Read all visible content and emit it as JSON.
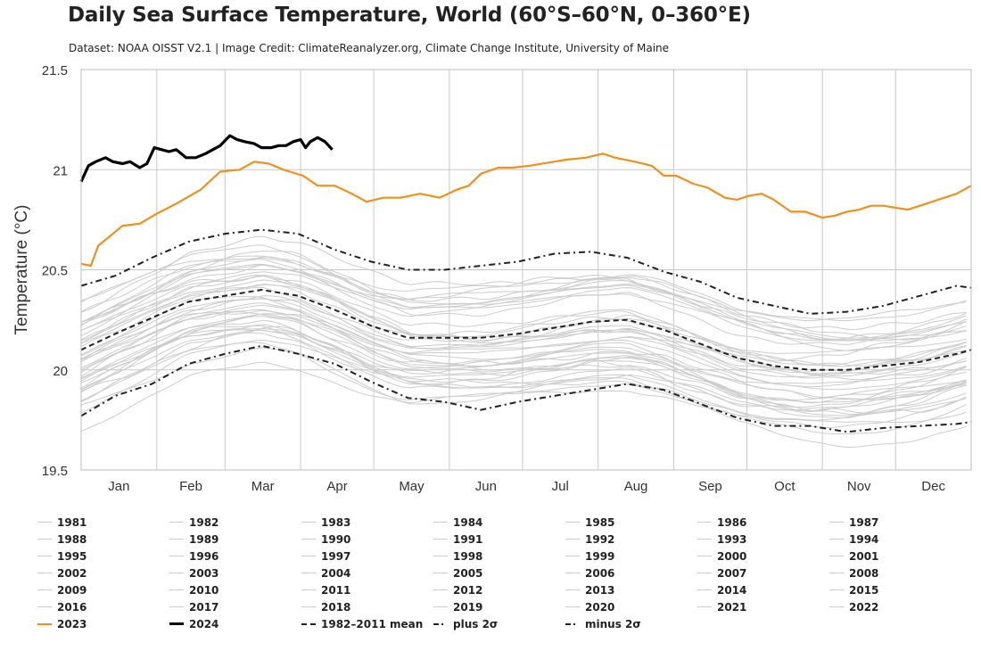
{
  "header": {
    "title": "Daily Sea Surface Temperature, World (60°S–60°N, 0–360°E)",
    "subtitle": "Dataset: NOAA OISST V2.1 | Image Credit: ClimateReanalyzer.org, Climate Change Institute, University of Maine"
  },
  "colors": {
    "background_years": "#cccccc",
    "year_2023": "#f0901c",
    "year_2024": "#000000",
    "stat_lines": "#222222",
    "grid": "#c8c8c8"
  },
  "chart_data": {
    "type": "line",
    "title": "Daily Sea Surface Temperature, World (60°S–60°N, 0–360°E)",
    "subtitle": "Dataset: NOAA OISST V2.1 | Image Credit: ClimateReanalyzer.org, Climate Change Institute, University of Maine",
    "xlabel": "",
    "ylabel": "Temperature (°C)",
    "ylim": [
      19.5,
      21.5
    ],
    "yticks": [
      19.5,
      20,
      20.5,
      21,
      21.5
    ],
    "ytick_labels": [
      "19.5",
      "20",
      "20.5",
      "21",
      "21.5"
    ],
    "x_unit": "day of year",
    "xlim": [
      1,
      366
    ],
    "month_labels": [
      "Jan",
      "Feb",
      "Mar",
      "Apr",
      "May",
      "Jun",
      "Jul",
      "Aug",
      "Sep",
      "Oct",
      "Nov",
      "Dec"
    ],
    "grid": true,
    "legend_placement": "bottom",
    "background_years": [
      "1981",
      "1982",
      "1983",
      "1984",
      "1985",
      "1986",
      "1987",
      "1988",
      "1989",
      "1990",
      "1991",
      "1992",
      "1993",
      "1994",
      "1995",
      "1996",
      "1997",
      "1998",
      "1999",
      "2000",
      "2001",
      "2002",
      "2003",
      "2004",
      "2005",
      "2006",
      "2007",
      "2008",
      "2009",
      "2010",
      "2011",
      "2012",
      "2013",
      "2014",
      "2015",
      "2016",
      "2017",
      "2018",
      "2019",
      "2020",
      "2021",
      "2022"
    ],
    "series": [
      {
        "name": "2023",
        "style": "orange-solid",
        "x": [
          1,
          5,
          8,
          12,
          18,
          25,
          32,
          40,
          50,
          58,
          66,
          72,
          78,
          84,
          92,
          98,
          105,
          112,
          118,
          125,
          132,
          140,
          148,
          155,
          160,
          165,
          172,
          178,
          185,
          195,
          200,
          208,
          215,
          220,
          228,
          235,
          240,
          245,
          252,
          258,
          265,
          270,
          275,
          280,
          285,
          292,
          298,
          305,
          310,
          315,
          320,
          325,
          330,
          340,
          345,
          350,
          355,
          360,
          366
        ],
        "values": [
          20.53,
          20.52,
          20.62,
          20.66,
          20.72,
          20.73,
          20.78,
          20.83,
          20.9,
          20.99,
          21.0,
          21.04,
          21.03,
          21.0,
          20.97,
          20.92,
          20.92,
          20.88,
          20.84,
          20.86,
          20.86,
          20.88,
          20.86,
          20.9,
          20.92,
          20.98,
          21.01,
          21.01,
          21.02,
          21.04,
          21.05,
          21.06,
          21.08,
          21.06,
          21.04,
          21.02,
          20.97,
          20.97,
          20.93,
          20.91,
          20.86,
          20.85,
          20.87,
          20.88,
          20.85,
          20.79,
          20.79,
          20.76,
          20.77,
          20.79,
          20.8,
          20.82,
          20.82,
          20.8,
          20.82,
          20.84,
          20.86,
          20.88,
          20.92
        ]
      },
      {
        "name": "2024",
        "style": "black-bold",
        "x": [
          1,
          4,
          7,
          11,
          14,
          18,
          21,
          25,
          28,
          31,
          34,
          37,
          40,
          44,
          48,
          52,
          55,
          58,
          62,
          65,
          68,
          72,
          75,
          79,
          82,
          85,
          88,
          91,
          93,
          95,
          98,
          101,
          104
        ],
        "values": [
          20.94,
          21.02,
          21.04,
          21.06,
          21.04,
          21.03,
          21.04,
          21.01,
          21.03,
          21.11,
          21.1,
          21.09,
          21.1,
          21.06,
          21.06,
          21.08,
          21.1,
          21.12,
          21.17,
          21.15,
          21.14,
          21.13,
          21.11,
          21.11,
          21.12,
          21.12,
          21.14,
          21.15,
          21.11,
          21.14,
          21.16,
          21.14,
          21.1
        ]
      },
      {
        "name": "1982-2011 mean",
        "style": "dashed",
        "x": [
          1,
          15,
          30,
          45,
          60,
          75,
          90,
          105,
          120,
          135,
          150,
          165,
          180,
          195,
          210,
          225,
          240,
          255,
          270,
          285,
          300,
          315,
          330,
          345,
          360,
          366
        ],
        "values": [
          20.1,
          20.18,
          20.26,
          20.34,
          20.37,
          20.4,
          20.37,
          20.3,
          20.22,
          20.16,
          20.16,
          20.16,
          20.18,
          20.21,
          20.24,
          20.25,
          20.2,
          20.13,
          20.06,
          20.02,
          20.0,
          20.0,
          20.02,
          20.04,
          20.08,
          20.1
        ]
      },
      {
        "name": "plus 2σ",
        "style": "dash-dot",
        "x": [
          1,
          15,
          30,
          45,
          60,
          75,
          90,
          105,
          120,
          135,
          150,
          165,
          180,
          195,
          210,
          225,
          240,
          255,
          270,
          285,
          300,
          315,
          330,
          345,
          360,
          366
        ],
        "values": [
          20.42,
          20.47,
          20.56,
          20.64,
          20.68,
          20.7,
          20.68,
          20.6,
          20.54,
          20.5,
          20.5,
          20.52,
          20.54,
          20.58,
          20.59,
          20.56,
          20.49,
          20.44,
          20.36,
          20.32,
          20.28,
          20.29,
          20.32,
          20.37,
          20.42,
          20.41
        ]
      },
      {
        "name": "minus 2σ",
        "style": "dash-dot",
        "x": [
          1,
          15,
          30,
          45,
          60,
          75,
          90,
          105,
          120,
          135,
          150,
          165,
          180,
          195,
          210,
          225,
          240,
          255,
          270,
          285,
          300,
          315,
          330,
          345,
          360,
          366
        ],
        "values": [
          19.77,
          19.87,
          19.93,
          20.03,
          20.08,
          20.12,
          20.08,
          20.03,
          19.94,
          19.86,
          19.84,
          19.8,
          19.84,
          19.87,
          19.9,
          19.93,
          19.9,
          19.83,
          19.76,
          19.72,
          19.72,
          19.69,
          19.71,
          19.72,
          19.73,
          19.74
        ]
      }
    ]
  },
  "legend": {
    "rows": [
      [
        "1981",
        "1982",
        "1983",
        "1984",
        "1985",
        "1986",
        "1987"
      ],
      [
        "1988",
        "1989",
        "1990",
        "1991",
        "1992",
        "1993",
        "1994"
      ],
      [
        "1995",
        "1996",
        "1997",
        "1998",
        "1999",
        "2000",
        "2001"
      ],
      [
        "2002",
        "2003",
        "2004",
        "2005",
        "2006",
        "2007",
        "2008"
      ],
      [
        "2009",
        "2010",
        "2011",
        "2012",
        "2013",
        "2014",
        "2015"
      ],
      [
        "2016",
        "2017",
        "2018",
        "2019",
        "2020",
        "2021",
        "2022"
      ]
    ],
    "last_row": [
      {
        "label": "2023",
        "style": "orange"
      },
      {
        "label": "2024",
        "style": "black"
      },
      {
        "label": "1982–2011 mean",
        "style": "dash"
      },
      {
        "label": "plus 2σ",
        "style": "dashdot"
      },
      {
        "label": "minus 2σ",
        "style": "dashdot"
      }
    ]
  }
}
